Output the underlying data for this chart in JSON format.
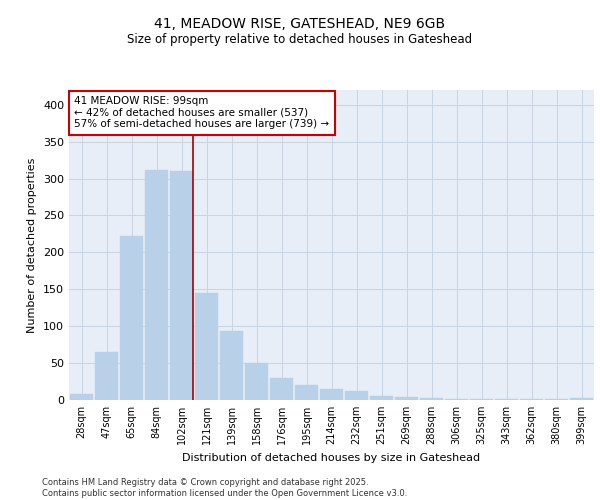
{
  "title1": "41, MEADOW RISE, GATESHEAD, NE9 6GB",
  "title2": "Size of property relative to detached houses in Gateshead",
  "xlabel": "Distribution of detached houses by size in Gateshead",
  "ylabel": "Number of detached properties",
  "categories": [
    "28sqm",
    "47sqm",
    "65sqm",
    "84sqm",
    "102sqm",
    "121sqm",
    "139sqm",
    "158sqm",
    "176sqm",
    "195sqm",
    "214sqm",
    "232sqm",
    "251sqm",
    "269sqm",
    "288sqm",
    "306sqm",
    "325sqm",
    "343sqm",
    "362sqm",
    "380sqm",
    "399sqm"
  ],
  "bar_heights": [
    8,
    65,
    222,
    312,
    310,
    145,
    93,
    50,
    30,
    20,
    15,
    12,
    5,
    4,
    3,
    2,
    1,
    1,
    1,
    1,
    3
  ],
  "bar_color": "#b8d0e8",
  "bar_edge_color": "#b8d0e8",
  "grid_color": "#c8d4e4",
  "background_color": "#e8eef8",
  "vline_color": "#aa0000",
  "annotation_text": "41 MEADOW RISE: 99sqm\n← 42% of detached houses are smaller (537)\n57% of semi-detached houses are larger (739) →",
  "annotation_box_color": "white",
  "annotation_box_edge": "#cc0000",
  "footer_text": "Contains HM Land Registry data © Crown copyright and database right 2025.\nContains public sector information licensed under the Open Government Licence v3.0.",
  "ylim": [
    0,
    420
  ],
  "yticks": [
    0,
    50,
    100,
    150,
    200,
    250,
    300,
    350,
    400
  ]
}
